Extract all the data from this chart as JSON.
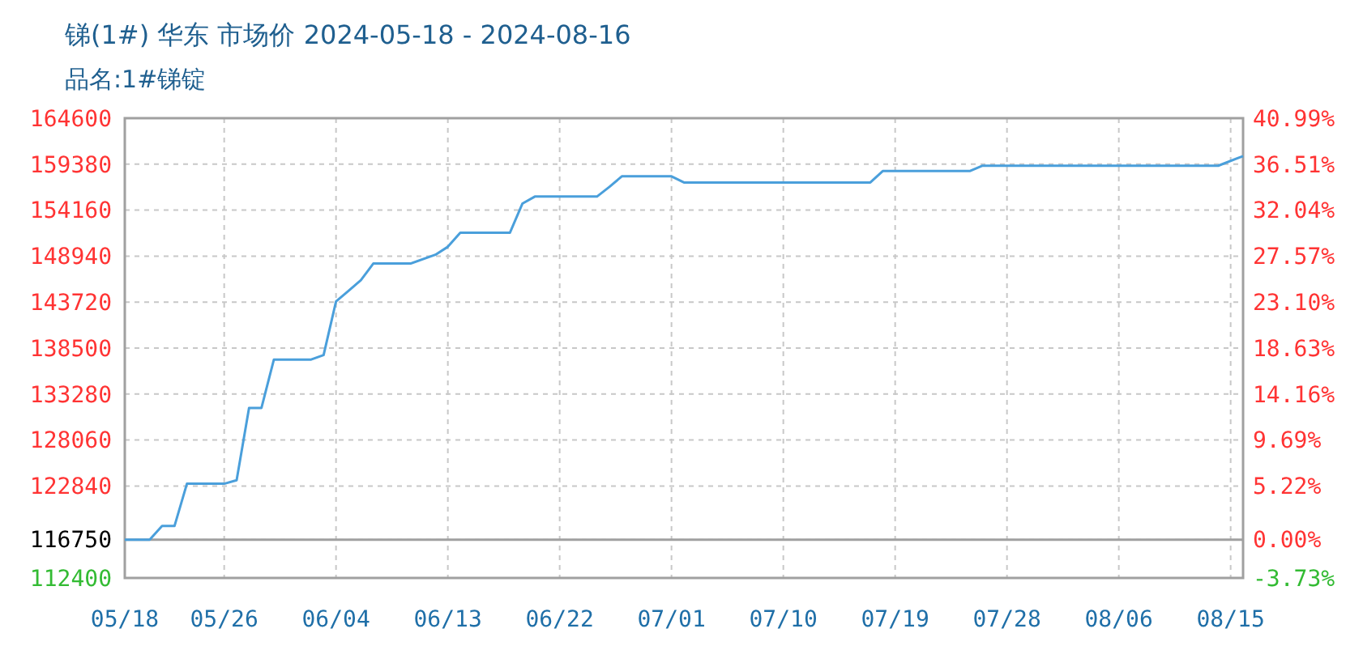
{
  "chart_data": {
    "type": "line",
    "title": "锑(1#) 华东 市场价 2024-05-18 - 2024-08-16",
    "subtitle": "品名:1#锑锭",
    "x": [
      "2024-05-18",
      "2024-05-20",
      "2024-05-21",
      "2024-05-22",
      "2024-05-23",
      "2024-05-26",
      "2024-05-27",
      "2024-05-28",
      "2024-05-29",
      "2024-05-30",
      "2024-06-02",
      "2024-06-03",
      "2024-06-04",
      "2024-06-05",
      "2024-06-06",
      "2024-06-07",
      "2024-06-10",
      "2024-06-12",
      "2024-06-13",
      "2024-06-14",
      "2024-06-18",
      "2024-06-19",
      "2024-06-20",
      "2024-06-25",
      "2024-06-26",
      "2024-06-27",
      "2024-07-01",
      "2024-07-02",
      "2024-07-17",
      "2024-07-18",
      "2024-07-25",
      "2024-07-26",
      "2024-08-14",
      "2024-08-16"
    ],
    "series": [
      {
        "color": "#4a9fdb",
        "values": [
          116750,
          116750,
          118300,
          118300,
          123100,
          123100,
          123500,
          131700,
          131700,
          137200,
          137200,
          137700,
          143800,
          145000,
          146200,
          148100,
          148100,
          149100,
          150000,
          151600,
          151600,
          154900,
          155700,
          155700,
          156800,
          158000,
          158000,
          157300,
          157300,
          158600,
          158600,
          159200,
          159200,
          160300
        ]
      }
    ],
    "xlim": [
      "2024-05-18",
      "2024-08-16"
    ],
    "xticks": [
      {
        "value": "2024-05-18",
        "label": "05/18"
      },
      {
        "value": "2024-05-26",
        "label": "05/26"
      },
      {
        "value": "2024-06-04",
        "label": "06/04"
      },
      {
        "value": "2024-06-13",
        "label": "06/13"
      },
      {
        "value": "2024-06-22",
        "label": "06/22"
      },
      {
        "value": "2024-07-01",
        "label": "07/01"
      },
      {
        "value": "2024-07-10",
        "label": "07/10"
      },
      {
        "value": "2024-07-19",
        "label": "07/19"
      },
      {
        "value": "2024-07-28",
        "label": "07/28"
      },
      {
        "value": "2024-08-06",
        "label": "08/06"
      },
      {
        "value": "2024-08-15",
        "label": "08/15"
      }
    ],
    "ylim": [
      112400,
      164600
    ],
    "yticks": [
      112400,
      116750,
      122840,
      128060,
      133280,
      138500,
      143720,
      148940,
      154160,
      159380,
      164600
    ],
    "y2lim": [
      -3.73,
      40.99
    ],
    "y2ticks": [
      {
        "value": -3.73,
        "label": "-3.73%"
      },
      {
        "value": 0,
        "label": "0.00%"
      },
      {
        "value": 5.22,
        "label": "5.22%"
      },
      {
        "value": 9.69,
        "label": "9.69%"
      },
      {
        "value": 14.16,
        "label": "14.16%"
      },
      {
        "value": 18.63,
        "label": "18.63%"
      },
      {
        "value": 23.1,
        "label": "23.10%"
      },
      {
        "value": 27.57,
        "label": "27.57%"
      },
      {
        "value": 32.04,
        "label": "32.04%"
      },
      {
        "value": 36.51,
        "label": "36.51%"
      },
      {
        "value": 40.99,
        "label": "40.99%"
      }
    ],
    "ref_lines": [
      {
        "axis": "y",
        "value": 116750,
        "label": null,
        "color": "#a0a0a0"
      }
    ],
    "grid": true,
    "marker": "none",
    "line_style": "solid"
  }
}
